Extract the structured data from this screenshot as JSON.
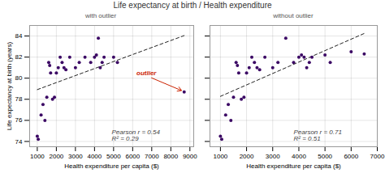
{
  "chart_data": [
    {
      "type": "scatter",
      "title": "Life expectancy at birth / Health expenditure",
      "subtitle": "with outlier",
      "x": [
        1000,
        1050,
        1200,
        1300,
        1400,
        1500,
        1600,
        1650,
        1700,
        1800,
        1900,
        2000,
        2100,
        2200,
        2300,
        2400,
        2500,
        2700,
        3000,
        3200,
        3500,
        3800,
        4000,
        4100,
        4200,
        4300,
        4400,
        4500,
        5000,
        5200,
        8700
      ],
      "values": [
        74.5,
        74.2,
        76.5,
        77.5,
        76.0,
        78.2,
        81.5,
        81.2,
        80.5,
        78.0,
        78.2,
        80.5,
        81.0,
        82.0,
        81.5,
        81.0,
        80.8,
        82.0,
        81.0,
        81.5,
        82.0,
        81.5,
        82.0,
        82.2,
        83.8,
        81.0,
        81.5,
        82.0,
        82.0,
        81.5,
        78.7
      ],
      "color": "#3b0764",
      "xlim": [
        600,
        9200
      ],
      "xticks": [
        1000,
        2000,
        3000,
        4000,
        5000,
        6000,
        7000,
        8000,
        9000
      ],
      "ylim": [
        73.5,
        85.0
      ],
      "yticks": [
        74,
        76,
        78,
        80,
        82,
        84
      ],
      "xlabel": "Health expenditure per capita ($)",
      "ylabel": "Life expectancy at birth (years)",
      "grid": true,
      "annotations": [
        {
          "text": "Pearson r = 0.54\nR² = 0.29"
        },
        {
          "text": "outlier",
          "x": 8700,
          "y": 78.7,
          "color": "#cc2200"
        }
      ]
    },
    {
      "type": "scatter",
      "subtitle": "without outlier",
      "x": [
        1000,
        1050,
        1200,
        1300,
        1400,
        1500,
        1600,
        1650,
        1700,
        1800,
        1900,
        2000,
        2100,
        2200,
        2300,
        2400,
        2500,
        2700,
        3000,
        3200,
        3500,
        3800,
        4000,
        4100,
        4200,
        4300,
        4400,
        4500,
        5000,
        5200,
        6000,
        6500
      ],
      "values": [
        74.5,
        74.2,
        76.5,
        77.5,
        76.0,
        78.2,
        81.5,
        81.2,
        80.5,
        78.0,
        78.2,
        80.5,
        81.0,
        82.0,
        81.5,
        81.0,
        80.8,
        82.0,
        81.0,
        81.5,
        83.8,
        81.5,
        82.0,
        82.2,
        82.0,
        81.0,
        81.5,
        82.0,
        82.2,
        81.5,
        82.5,
        82.3
      ],
      "color": "#3b0764",
      "xlim": [
        600,
        7000
      ],
      "xticks": [
        1000,
        2000,
        3000,
        4000,
        5000,
        6000,
        7000
      ],
      "ylim": [
        73.5,
        85.0
      ],
      "yticks": [
        74,
        76,
        78,
        80,
        82,
        84
      ],
      "xlabel": "Health expenditure per capita ($)",
      "grid": true,
      "tick_labels": "x",
      "annotations": [
        {
          "text": "Pearson r = 0.71\nR² = 0.51"
        }
      ]
    }
  ]
}
